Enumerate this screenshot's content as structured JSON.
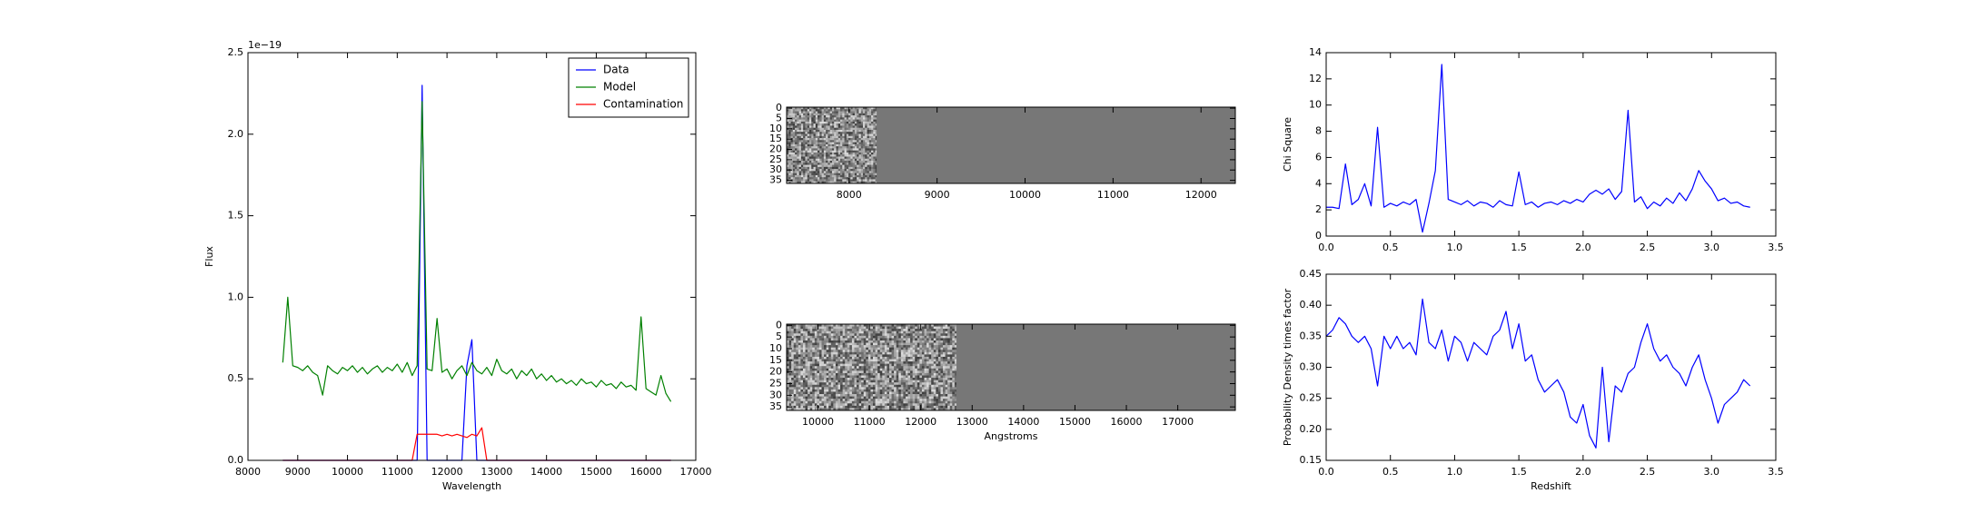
{
  "chart_data": [
    {
      "type": "line",
      "xlabel": "Wavelength",
      "ylabel": "Flux",
      "y_offset_text": "1e−19",
      "legend": "upper right",
      "xlim": [
        8000,
        17000
      ],
      "xticks": [
        8000,
        9000,
        10000,
        11000,
        12000,
        13000,
        14000,
        15000,
        16000,
        17000
      ],
      "ylim": [
        0,
        2.5
      ],
      "yticks": [
        {
          "value": 0,
          "label": "0.0"
        },
        0.5,
        {
          "value": 1,
          "label": "1.0"
        },
        1.5,
        {
          "value": 2,
          "label": "2.0"
        },
        2.5
      ],
      "x": [
        8700,
        8800,
        8900,
        9000,
        9100,
        9200,
        9300,
        9400,
        9500,
        9600,
        9700,
        9800,
        9900,
        10000,
        10100,
        10200,
        10300,
        10400,
        10500,
        10600,
        10700,
        10800,
        10900,
        11000,
        11100,
        11200,
        11300,
        11400,
        11500,
        11600,
        11700,
        11800,
        11900,
        12000,
        12100,
        12200,
        12300,
        12400,
        12500,
        12600,
        12700,
        12800,
        12900,
        13000,
        13100,
        13200,
        13300,
        13400,
        13500,
        13600,
        13700,
        13800,
        13900,
        14000,
        14100,
        14200,
        14300,
        14400,
        14500,
        14600,
        14700,
        14800,
        14900,
        15000,
        15100,
        15200,
        15300,
        15400,
        15500,
        15600,
        15700,
        15800,
        15900,
        16000,
        16100,
        16200,
        16300,
        16400,
        16500
      ],
      "series": [
        {
          "name": "Data",
          "color": "#0000ff",
          "values": [
            0,
            0,
            0,
            0,
            0,
            0,
            0,
            0,
            0,
            0,
            0,
            0,
            0,
            0,
            0,
            0,
            0,
            0,
            0,
            0,
            0,
            0,
            0,
            0,
            0,
            0,
            0,
            0,
            2.3,
            0,
            0,
            0,
            0,
            0,
            0,
            0,
            0,
            0.58,
            0.74,
            0,
            0,
            0,
            0,
            0,
            0,
            0,
            0,
            0,
            0,
            0,
            0,
            0,
            0,
            0,
            0,
            0,
            0,
            0,
            0,
            0,
            0,
            0,
            0,
            0,
            0,
            0,
            0,
            0,
            0,
            0,
            0,
            0,
            0,
            0,
            0,
            0,
            0,
            0,
            0
          ]
        },
        {
          "name": "Model",
          "color": "#008000",
          "values": [
            0.6,
            1.0,
            0.58,
            0.57,
            0.55,
            0.58,
            0.54,
            0.52,
            0.4,
            0.58,
            0.55,
            0.53,
            0.57,
            0.55,
            0.58,
            0.54,
            0.57,
            0.53,
            0.56,
            0.58,
            0.54,
            0.57,
            0.55,
            0.59,
            0.54,
            0.6,
            0.52,
            0.58,
            2.2,
            0.56,
            0.55,
            0.87,
            0.54,
            0.56,
            0.5,
            0.55,
            0.58,
            0.52,
            0.6,
            0.55,
            0.53,
            0.57,
            0.52,
            0.62,
            0.55,
            0.53,
            0.56,
            0.5,
            0.55,
            0.52,
            0.56,
            0.5,
            0.53,
            0.49,
            0.52,
            0.48,
            0.5,
            0.47,
            0.49,
            0.46,
            0.5,
            0.47,
            0.48,
            0.45,
            0.49,
            0.46,
            0.47,
            0.44,
            0.48,
            0.45,
            0.46,
            0.43,
            0.88,
            0.44,
            0.42,
            0.4,
            0.52,
            0.41,
            0.36
          ]
        },
        {
          "name": "Contamination",
          "color": "#ff0000",
          "values": [
            0,
            0,
            0,
            0,
            0,
            0,
            0,
            0,
            0,
            0,
            0,
            0,
            0,
            0,
            0,
            0,
            0,
            0,
            0,
            0,
            0,
            0,
            0,
            0,
            0,
            0,
            0,
            0.16,
            0.16,
            0.16,
            0.16,
            0.16,
            0.15,
            0.16,
            0.15,
            0.16,
            0.15,
            0.14,
            0.16,
            0.15,
            0.2,
            0,
            0,
            0,
            0,
            0,
            0,
            0,
            0,
            0,
            0,
            0,
            0,
            0,
            0,
            0,
            0,
            0,
            0,
            0,
            0,
            0,
            0,
            0,
            0,
            0,
            0,
            0,
            0,
            0,
            0,
            0,
            0,
            0,
            0,
            0,
            0,
            0,
            0
          ]
        }
      ]
    },
    {
      "type": "image",
      "background": "#777777",
      "xlim": [
        7290,
        12390
      ],
      "xticks": [
        8000,
        9000,
        10000,
        11000,
        12000
      ],
      "ylim": [
        36.5,
        -0.5
      ],
      "yticks": [
        0,
        5,
        10,
        15,
        20,
        25,
        30,
        35
      ],
      "data_xrange": [
        7290,
        8310
      ]
    },
    {
      "type": "image",
      "background": "#777777",
      "xlabel": "Angstroms",
      "xlim": [
        9390,
        18120
      ],
      "xticks": [
        10000,
        11000,
        12000,
        13000,
        14000,
        15000,
        16000,
        17000
      ],
      "ylim": [
        36.5,
        -0.5
      ],
      "yticks": [
        0,
        5,
        10,
        15,
        20,
        25,
        30,
        35
      ],
      "data_xrange": [
        9390,
        12690
      ]
    },
    {
      "type": "line",
      "ylabel": "Chi Square",
      "xlim": [
        0,
        3.5
      ],
      "xticks": [
        {
          "value": 0,
          "label": "0.0"
        },
        0.5,
        {
          "value": 1,
          "label": "1.0"
        },
        1.5,
        {
          "value": 2,
          "label": "2.0"
        },
        2.5,
        {
          "value": 3,
          "label": "3.0"
        },
        3.5
      ],
      "ylim": [
        0,
        14
      ],
      "yticks": [
        0,
        2,
        4,
        6,
        8,
        10,
        12,
        14
      ],
      "x": [
        0,
        0.05,
        0.1,
        0.15,
        0.2,
        0.25,
        0.3,
        0.35,
        0.4,
        0.45,
        0.5,
        0.55,
        0.6,
        0.65,
        0.7,
        0.75,
        0.8,
        0.85,
        0.9,
        0.95,
        1.0,
        1.05,
        1.1,
        1.15,
        1.2,
        1.25,
        1.3,
        1.35,
        1.4,
        1.45,
        1.5,
        1.55,
        1.6,
        1.65,
        1.7,
        1.75,
        1.8,
        1.85,
        1.9,
        1.95,
        2.0,
        2.05,
        2.1,
        2.15,
        2.2,
        2.25,
        2.3,
        2.35,
        2.4,
        2.45,
        2.5,
        2.55,
        2.6,
        2.65,
        2.7,
        2.75,
        2.8,
        2.85,
        2.9,
        2.95,
        3.0,
        3.05,
        3.1,
        3.15,
        3.2,
        3.25,
        3.3
      ],
      "series": [
        {
          "color": "#0000ff",
          "values": [
            2.2,
            2.2,
            2.1,
            5.5,
            2.4,
            2.8,
            4.0,
            2.3,
            8.3,
            2.2,
            2.5,
            2.3,
            2.6,
            2.4,
            2.8,
            0.3,
            2.5,
            5.0,
            13.1,
            2.8,
            2.6,
            2.4,
            2.7,
            2.3,
            2.6,
            2.5,
            2.2,
            2.7,
            2.4,
            2.3,
            4.9,
            2.4,
            2.6,
            2.2,
            2.5,
            2.6,
            2.4,
            2.7,
            2.5,
            2.8,
            2.6,
            3.2,
            3.5,
            3.2,
            3.6,
            2.8,
            3.4,
            9.6,
            2.6,
            3.0,
            2.1,
            2.6,
            2.3,
            2.9,
            2.5,
            3.3,
            2.7,
            3.6,
            5.0,
            4.2,
            3.6,
            2.7,
            2.9,
            2.5,
            2.6,
            2.3,
            2.2
          ]
        }
      ]
    },
    {
      "type": "line",
      "xlabel": "Redshift",
      "ylabel": "Probability Density times factor",
      "xlim": [
        0,
        3.5
      ],
      "xticks": [
        {
          "value": 0,
          "label": "0.0"
        },
        0.5,
        {
          "value": 1,
          "label": "1.0"
        },
        1.5,
        {
          "value": 2,
          "label": "2.0"
        },
        2.5,
        {
          "value": 3,
          "label": "3.0"
        },
        3.5
      ],
      "ylim": [
        0.15,
        0.45
      ],
      "yticks": [
        0.15,
        {
          "value": 0.2,
          "label": "0.20"
        },
        0.25,
        {
          "value": 0.3,
          "label": "0.30"
        },
        0.35,
        {
          "value": 0.4,
          "label": "0.40"
        },
        0.45
      ],
      "x": [
        0,
        0.05,
        0.1,
        0.15,
        0.2,
        0.25,
        0.3,
        0.35,
        0.4,
        0.45,
        0.5,
        0.55,
        0.6,
        0.65,
        0.7,
        0.75,
        0.8,
        0.85,
        0.9,
        0.95,
        1.0,
        1.05,
        1.1,
        1.15,
        1.2,
        1.25,
        1.3,
        1.35,
        1.4,
        1.45,
        1.5,
        1.55,
        1.6,
        1.65,
        1.7,
        1.75,
        1.8,
        1.85,
        1.9,
        1.95,
        2.0,
        2.05,
        2.1,
        2.15,
        2.2,
        2.25,
        2.3,
        2.35,
        2.4,
        2.45,
        2.5,
        2.55,
        2.6,
        2.65,
        2.7,
        2.75,
        2.8,
        2.85,
        2.9,
        2.95,
        3.0,
        3.05,
        3.1,
        3.15,
        3.2,
        3.25,
        3.3
      ],
      "series": [
        {
          "color": "#0000ff",
          "values": [
            0.35,
            0.36,
            0.38,
            0.37,
            0.35,
            0.34,
            0.35,
            0.33,
            0.27,
            0.35,
            0.33,
            0.35,
            0.33,
            0.34,
            0.32,
            0.41,
            0.34,
            0.33,
            0.36,
            0.31,
            0.35,
            0.34,
            0.31,
            0.34,
            0.33,
            0.32,
            0.35,
            0.36,
            0.39,
            0.33,
            0.37,
            0.31,
            0.32,
            0.28,
            0.26,
            0.27,
            0.28,
            0.26,
            0.22,
            0.21,
            0.24,
            0.19,
            0.17,
            0.3,
            0.18,
            0.27,
            0.26,
            0.29,
            0.3,
            0.34,
            0.37,
            0.33,
            0.31,
            0.32,
            0.3,
            0.29,
            0.27,
            0.3,
            0.32,
            0.28,
            0.25,
            0.21,
            0.24,
            0.25,
            0.26,
            0.28,
            0.27
          ]
        }
      ]
    }
  ]
}
